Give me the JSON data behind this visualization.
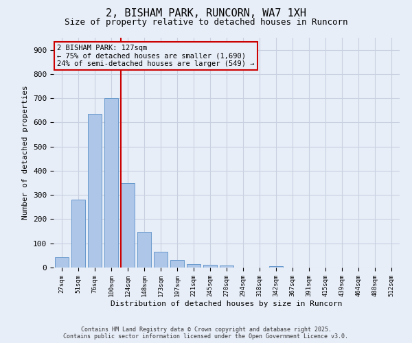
{
  "title_line1": "2, BISHAM PARK, RUNCORN, WA7 1XH",
  "title_line2": "Size of property relative to detached houses in Runcorn",
  "xlabel": "Distribution of detached houses by size in Runcorn",
  "ylabel": "Number of detached properties",
  "footer_line1": "Contains HM Land Registry data © Crown copyright and database right 2025.",
  "footer_line2": "Contains public sector information licensed under the Open Government Licence v3.0.",
  "categories": [
    "27sqm",
    "51sqm",
    "76sqm",
    "100sqm",
    "124sqm",
    "148sqm",
    "173sqm",
    "197sqm",
    "221sqm",
    "245sqm",
    "270sqm",
    "294sqm",
    "318sqm",
    "342sqm",
    "367sqm",
    "391sqm",
    "415sqm",
    "439sqm",
    "464sqm",
    "488sqm",
    "512sqm"
  ],
  "values": [
    43,
    280,
    635,
    700,
    350,
    148,
    65,
    32,
    13,
    10,
    9,
    0,
    0,
    7,
    0,
    0,
    0,
    0,
    0,
    0,
    0
  ],
  "bar_color": "#aec6e8",
  "bar_edge_color": "#6699cc",
  "reference_line_color": "#cc0000",
  "annotation_text_line1": "2 BISHAM PARK: 127sqm",
  "annotation_text_line2": "← 75% of detached houses are smaller (1,690)",
  "annotation_text_line3": "24% of semi-detached houses are larger (549) →",
  "annotation_box_edgecolor": "#cc0000",
  "background_color": "#e8eef8",
  "grid_color": "#c8d0e0",
  "ylim": [
    0,
    950
  ],
  "yticks": [
    0,
    100,
    200,
    300,
    400,
    500,
    600,
    700,
    800,
    900
  ]
}
